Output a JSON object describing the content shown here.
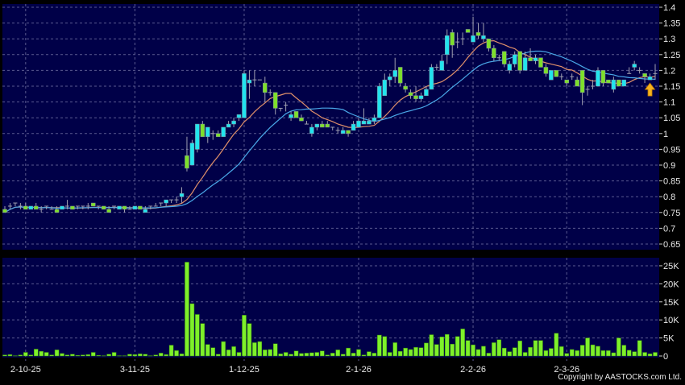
{
  "chart_data": [
    {
      "type": "candlestick",
      "panel": "price",
      "ylim": [
        0.65,
        1.4
      ],
      "y_ticks": [
        "0.65",
        "0.7",
        "0.75",
        "0.8",
        "0.85",
        "0.9",
        "0.95",
        "1",
        "1.05",
        "1.1",
        "1.15",
        "1.2",
        "1.25",
        "1.3",
        "1.35",
        "1.4"
      ],
      "x_ticks": [
        {
          "index": 4,
          "label": "2-10-25"
        },
        {
          "index": 25,
          "label": "3-11-25"
        },
        {
          "index": 46,
          "label": "1-12-25"
        },
        {
          "index": 68,
          "label": "2-1-26"
        },
        {
          "index": 90,
          "label": "2-2-26"
        },
        {
          "index": 108,
          "label": "2-3-26"
        }
      ],
      "grid": true,
      "colors": {
        "up": "#22e4ee",
        "down": "#7ee02a",
        "ma_short": "#e0906a",
        "ma_long": "#4aa8e8",
        "background": "#000048",
        "marker_arrow": "#f5b21e"
      },
      "moving_averages": [
        10,
        20
      ],
      "ohlc": [
        [
          0.76,
          0.77,
          0.75,
          0.75
        ],
        [
          0.77,
          0.78,
          0.76,
          0.77
        ],
        [
          0.78,
          0.78,
          0.77,
          0.78
        ],
        [
          0.77,
          0.78,
          0.76,
          0.77
        ],
        [
          0.77,
          0.78,
          0.76,
          0.76
        ],
        [
          0.76,
          0.77,
          0.76,
          0.77
        ],
        [
          0.77,
          0.78,
          0.76,
          0.76
        ],
        [
          0.76,
          0.77,
          0.75,
          0.76
        ],
        [
          0.77,
          0.77,
          0.76,
          0.77
        ],
        [
          0.76,
          0.77,
          0.76,
          0.76
        ],
        [
          0.76,
          0.77,
          0.75,
          0.75
        ],
        [
          0.76,
          0.77,
          0.76,
          0.77
        ],
        [
          0.77,
          0.79,
          0.76,
          0.77
        ],
        [
          0.77,
          0.77,
          0.76,
          0.76
        ],
        [
          0.77,
          0.77,
          0.76,
          0.77
        ],
        [
          0.77,
          0.77,
          0.76,
          0.77
        ],
        [
          0.77,
          0.78,
          0.76,
          0.77
        ],
        [
          0.78,
          0.78,
          0.77,
          0.77
        ],
        [
          0.77,
          0.77,
          0.76,
          0.77
        ],
        [
          0.77,
          0.77,
          0.76,
          0.76
        ],
        [
          0.76,
          0.77,
          0.75,
          0.75
        ],
        [
          0.77,
          0.77,
          0.76,
          0.77
        ],
        [
          0.76,
          0.77,
          0.76,
          0.77
        ],
        [
          0.77,
          0.77,
          0.75,
          0.76
        ],
        [
          0.76,
          0.77,
          0.76,
          0.76
        ],
        [
          0.76,
          0.77,
          0.76,
          0.77
        ],
        [
          0.77,
          0.77,
          0.76,
          0.76
        ],
        [
          0.75,
          0.77,
          0.75,
          0.76
        ],
        [
          0.77,
          0.77,
          0.76,
          0.77
        ],
        [
          0.77,
          0.78,
          0.77,
          0.77
        ],
        [
          0.78,
          0.78,
          0.77,
          0.78
        ],
        [
          0.78,
          0.79,
          0.77,
          0.79
        ],
        [
          0.79,
          0.79,
          0.78,
          0.79
        ],
        [
          0.79,
          0.8,
          0.78,
          0.79
        ],
        [
          0.8,
          0.83,
          0.78,
          0.81
        ],
        [
          0.93,
          0.99,
          0.88,
          0.89
        ],
        [
          0.9,
          0.98,
          0.9,
          0.97
        ],
        [
          0.95,
          1.03,
          0.94,
          1.03
        ],
        [
          1.03,
          1.04,
          0.99,
          0.99
        ],
        [
          0.99,
          1.02,
          0.97,
          1.02
        ],
        [
          1.0,
          1.01,
          0.98,
          1.0
        ],
        [
          1.0,
          1.01,
          0.99,
          0.99
        ],
        [
          0.99,
          1.02,
          0.99,
          1.02
        ],
        [
          1.02,
          1.04,
          1.02,
          1.03
        ],
        [
          1.03,
          1.05,
          1.02,
          1.04
        ],
        [
          1.05,
          1.06,
          1.04,
          1.06
        ],
        [
          1.05,
          1.2,
          1.05,
          1.19
        ],
        [
          1.16,
          1.2,
          1.11,
          1.17
        ],
        [
          1.17,
          1.2,
          1.15,
          1.17
        ],
        [
          1.17,
          1.17,
          1.17,
          1.17
        ],
        [
          1.16,
          1.18,
          1.1,
          1.13
        ],
        [
          1.13,
          1.14,
          1.12,
          1.13
        ],
        [
          1.13,
          1.13,
          1.06,
          1.08
        ],
        [
          1.08,
          1.08,
          1.07,
          1.08
        ],
        [
          1.09,
          1.1,
          1.07,
          1.09
        ],
        [
          1.05,
          1.07,
          1.04,
          1.06
        ],
        [
          1.07,
          1.07,
          1.05,
          1.05
        ],
        [
          1.05,
          1.06,
          1.04,
          1.04
        ],
        [
          1.03,
          1.04,
          1.03,
          1.03
        ],
        [
          1.0,
          1.03,
          0.99,
          1.02
        ],
        [
          1.02,
          1.03,
          1.01,
          1.03
        ],
        [
          1.03,
          1.04,
          1.02,
          1.02
        ],
        [
          1.03,
          1.04,
          1.02,
          1.02
        ],
        [
          1.02,
          1.02,
          1.01,
          1.02
        ],
        [
          1.01,
          1.02,
          1.0,
          1.01
        ],
        [
          1.0,
          1.02,
          1.0,
          1.01
        ],
        [
          1.01,
          1.01,
          0.99,
          1.0
        ],
        [
          1.01,
          1.04,
          1.01,
          1.03
        ],
        [
          1.02,
          1.05,
          1.02,
          1.04
        ],
        [
          1.03,
          1.08,
          1.03,
          1.04
        ],
        [
          1.03,
          1.05,
          1.03,
          1.04
        ],
        [
          1.04,
          1.06,
          1.03,
          1.05
        ],
        [
          1.05,
          1.16,
          1.05,
          1.15
        ],
        [
          1.12,
          1.19,
          1.12,
          1.17
        ],
        [
          1.17,
          1.19,
          1.15,
          1.18
        ],
        [
          1.18,
          1.24,
          1.16,
          1.2
        ],
        [
          1.21,
          1.21,
          1.15,
          1.16
        ],
        [
          1.15,
          1.16,
          1.13,
          1.14
        ],
        [
          1.13,
          1.14,
          1.11,
          1.12
        ],
        [
          1.12,
          1.15,
          1.1,
          1.11
        ],
        [
          1.11,
          1.13,
          1.1,
          1.12
        ],
        [
          1.12,
          1.15,
          1.12,
          1.14
        ],
        [
          1.14,
          1.22,
          1.14,
          1.21
        ],
        [
          1.21,
          1.22,
          1.2,
          1.21
        ],
        [
          1.2,
          1.25,
          1.2,
          1.23
        ],
        [
          1.25,
          1.33,
          1.22,
          1.31
        ],
        [
          1.32,
          1.33,
          1.24,
          1.28
        ],
        [
          1.29,
          1.32,
          1.27,
          1.29
        ],
        [
          1.3,
          1.32,
          1.28,
          1.3
        ],
        [
          1.33,
          1.33,
          1.32,
          1.32
        ],
        [
          1.29,
          1.37,
          1.29,
          1.31
        ],
        [
          1.32,
          1.35,
          1.3,
          1.31
        ],
        [
          1.3,
          1.35,
          1.29,
          1.31
        ],
        [
          1.3,
          1.3,
          1.26,
          1.27
        ],
        [
          1.27,
          1.28,
          1.23,
          1.24
        ],
        [
          1.24,
          1.25,
          1.23,
          1.24
        ],
        [
          1.26,
          1.26,
          1.21,
          1.22
        ],
        [
          1.2,
          1.23,
          1.19,
          1.22
        ],
        [
          1.22,
          1.26,
          1.21,
          1.25
        ],
        [
          1.26,
          1.26,
          1.19,
          1.2
        ],
        [
          1.2,
          1.26,
          1.2,
          1.24
        ],
        [
          1.24,
          1.27,
          1.23,
          1.23
        ],
        [
          1.23,
          1.25,
          1.22,
          1.24
        ],
        [
          1.24,
          1.24,
          1.21,
          1.21
        ],
        [
          1.21,
          1.22,
          1.18,
          1.19
        ],
        [
          1.17,
          1.2,
          1.17,
          1.2
        ],
        [
          1.2,
          1.2,
          1.18,
          1.18
        ],
        [
          1.18,
          1.19,
          1.17,
          1.18
        ],
        [
          1.17,
          1.17,
          1.15,
          1.16
        ],
        [
          1.18,
          1.19,
          1.17,
          1.18
        ],
        [
          1.17,
          1.18,
          1.15,
          1.15
        ],
        [
          1.2,
          1.2,
          1.09,
          1.13
        ],
        [
          1.14,
          1.15,
          1.12,
          1.14
        ],
        [
          1.15,
          1.17,
          1.14,
          1.15
        ],
        [
          1.15,
          1.21,
          1.15,
          1.2
        ],
        [
          1.2,
          1.2,
          1.15,
          1.16
        ],
        [
          1.17,
          1.17,
          1.16,
          1.16
        ],
        [
          1.14,
          1.18,
          1.13,
          1.17
        ],
        [
          1.17,
          1.17,
          1.15,
          1.15
        ],
        [
          1.15,
          1.17,
          1.15,
          1.17
        ],
        [
          1.19,
          1.21,
          1.19,
          1.19
        ],
        [
          1.21,
          1.23,
          1.2,
          1.22
        ],
        [
          1.2,
          1.21,
          1.19,
          1.2
        ],
        [
          1.19,
          1.19,
          1.16,
          1.18
        ],
        [
          1.17,
          1.19,
          1.17,
          1.18
        ],
        [
          1.19,
          1.22,
          1.17,
          1.19
        ]
      ]
    },
    {
      "type": "bar",
      "panel": "volume",
      "ylim": [
        0,
        27
      ],
      "y_ticks": [
        {
          "value": 0,
          "label": "0"
        },
        {
          "value": 5,
          "label": "5K"
        },
        {
          "value": 10,
          "label": "10K"
        },
        {
          "value": 15,
          "label": "15K"
        },
        {
          "value": 20,
          "label": "20K"
        },
        {
          "value": 25,
          "label": "25K"
        }
      ],
      "color": "#7ef02a",
      "values": [
        0.3,
        0.4,
        0.1,
        0.3,
        1,
        0.3,
        1.9,
        1.3,
        1,
        0.3,
        1.7,
        0.7,
        0.3,
        0.5,
        0.2,
        0.3,
        0.4,
        1,
        0.2,
        0.1,
        0.5,
        1,
        0.1,
        0.1,
        0.5,
        0.4,
        0.6,
        0.5,
        0.1,
        0.3,
        0.8,
        0.4,
        3,
        1.5,
        0.6,
        26,
        14.5,
        11.5,
        9,
        3.2,
        2.3,
        0.5,
        4,
        1.7,
        2.6,
        1,
        11.3,
        9,
        3.7,
        4,
        1.7,
        1.8,
        3.4,
        0.6,
        1,
        0.5,
        1.4,
        0.7,
        0.8,
        0.9,
        1,
        1.4,
        0.3,
        0.8,
        1.7,
        0.5,
        2.2,
        0.8,
        1.8,
        0.3,
        1.2,
        0.8,
        5.8,
        5.4,
        1,
        3.7,
        1.3,
        2.2,
        1.8,
        2.4,
        2.3,
        3.6,
        5.9,
        3.2,
        5.3,
        6,
        3.3,
        5.4,
        7.5,
        4.3,
        3.1,
        1.8,
        2.7,
        0.8,
        3.7,
        4.5,
        2.2,
        1.2,
        2.3,
        4.2,
        1,
        2.4,
        4.3,
        4.3,
        1.5,
        2.1,
        6.3,
        2.6,
        0.7,
        1.8,
        1.5,
        3,
        5,
        3.1,
        2.7,
        1.5,
        1.5,
        0.9,
        5,
        3,
        1.6,
        1.2,
        4.3,
        1,
        0.6,
        1
      ]
    }
  ],
  "copyright": "Copyright by AASTOCKS.com Ltd."
}
